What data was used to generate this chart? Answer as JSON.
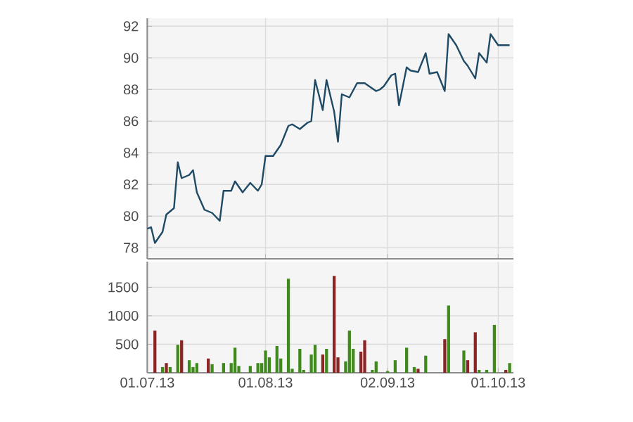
{
  "chart_data": [
    {
      "type": "line",
      "color": "#1f4a66",
      "x": [
        "2013-07-01",
        "2013-07-02",
        "2013-07-03",
        "2013-07-05",
        "2013-07-06",
        "2013-07-08",
        "2013-07-09",
        "2013-07-10",
        "2013-07-12",
        "2013-07-13",
        "2013-07-14",
        "2013-07-16",
        "2013-07-18",
        "2013-07-20",
        "2013-07-21",
        "2013-07-23",
        "2013-07-24",
        "2013-07-26",
        "2013-07-28",
        "2013-07-30",
        "2013-07-31",
        "2013-08-01",
        "2013-08-03",
        "2013-08-05",
        "2013-08-07",
        "2013-08-08",
        "2013-08-10",
        "2013-08-12",
        "2013-08-13",
        "2013-08-14",
        "2013-08-16",
        "2013-08-17",
        "2013-08-19",
        "2013-08-20",
        "2013-08-21",
        "2013-08-23",
        "2013-08-25",
        "2013-08-27",
        "2013-08-30",
        "2013-08-31",
        "2013-09-01",
        "2013-09-03",
        "2013-09-04",
        "2013-09-05",
        "2013-09-07",
        "2013-09-08",
        "2013-09-10",
        "2013-09-12",
        "2013-09-13",
        "2013-09-15",
        "2013-09-17",
        "2013-09-18",
        "2013-09-20",
        "2013-09-22",
        "2013-09-23",
        "2013-09-25",
        "2013-09-26",
        "2013-09-28",
        "2013-09-29",
        "2013-10-01",
        "2013-10-04"
      ],
      "values": [
        79.2,
        79.3,
        78.3,
        79.0,
        80.1,
        80.5,
        83.4,
        82.4,
        82.6,
        82.9,
        81.5,
        80.4,
        80.2,
        79.7,
        81.6,
        81.6,
        82.2,
        81.5,
        82.1,
        81.6,
        82.0,
        83.8,
        83.8,
        84.5,
        85.7,
        85.8,
        85.5,
        85.9,
        86.0,
        88.6,
        86.7,
        88.6,
        86.6,
        84.7,
        87.7,
        87.5,
        88.4,
        88.4,
        87.9,
        88.0,
        88.2,
        88.9,
        89.0,
        87.0,
        89.4,
        89.2,
        89.1,
        90.3,
        89.0,
        89.1,
        87.9,
        91.5,
        90.8,
        89.8,
        89.5,
        88.7,
        90.3,
        89.7,
        91.5,
        90.8,
        90.8
      ],
      "xlim": [
        "2013-07-01",
        "2013-10-05"
      ],
      "ylim": [
        77.3,
        92.5
      ],
      "xticks": [
        {
          "value": "2013-07-01",
          "label": null
        },
        {
          "value": "2013-08-01",
          "label": null
        },
        {
          "value": "2013-09-02",
          "label": null
        },
        {
          "value": "2013-10-01",
          "label": null
        }
      ],
      "yticks": [
        78,
        80,
        82,
        84,
        86,
        88,
        90,
        92
      ],
      "grid": true,
      "tick_labels": "y"
    },
    {
      "type": "bar",
      "x": [
        "2013-07-03",
        "2013-07-05",
        "2013-07-06",
        "2013-07-07",
        "2013-07-09",
        "2013-07-10",
        "2013-07-12",
        "2013-07-13",
        "2013-07-14",
        "2013-07-17",
        "2013-07-18",
        "2013-07-21",
        "2013-07-23",
        "2013-07-24",
        "2013-07-25",
        "2013-07-28",
        "2013-07-30",
        "2013-07-31",
        "2013-08-01",
        "2013-08-02",
        "2013-08-04",
        "2013-08-05",
        "2013-08-07",
        "2013-08-08",
        "2013-08-10",
        "2013-08-11",
        "2013-08-13",
        "2013-08-14",
        "2013-08-16",
        "2013-08-17",
        "2013-08-19",
        "2013-08-20",
        "2013-08-22",
        "2013-08-23",
        "2013-08-24",
        "2013-08-26",
        "2013-08-27",
        "2013-08-29",
        "2013-08-30",
        "2013-09-02",
        "2013-09-04",
        "2013-09-07",
        "2013-09-09",
        "2013-09-10",
        "2013-09-12",
        "2013-09-17",
        "2013-09-18",
        "2013-09-22",
        "2013-09-23",
        "2013-09-25",
        "2013-09-26",
        "2013-09-28",
        "2013-09-30",
        "2013-10-03",
        "2013-10-04"
      ],
      "values": [
        740,
        100,
        170,
        100,
        490,
        570,
        220,
        100,
        170,
        250,
        150,
        170,
        170,
        440,
        120,
        120,
        170,
        170,
        390,
        270,
        470,
        250,
        1650,
        70,
        420,
        50,
        320,
        490,
        320,
        420,
        1700,
        270,
        200,
        740,
        420,
        370,
        570,
        50,
        200,
        30,
        220,
        440,
        100,
        70,
        300,
        590,
        1180,
        390,
        220,
        710,
        50,
        50,
        840,
        50,
        170
      ],
      "colors": [
        "#8b2424",
        "#3f8a1c",
        "#8b2424",
        "#3f8a1c",
        "#3f8a1c",
        "#8b2424",
        "#3f8a1c",
        "#3f8a1c",
        "#3f8a1c",
        "#8b2424",
        "#3f8a1c",
        "#3f8a1c",
        "#3f8a1c",
        "#3f8a1c",
        "#3f8a1c",
        "#3f8a1c",
        "#3f8a1c",
        "#3f8a1c",
        "#3f8a1c",
        "#3f8a1c",
        "#3f8a1c",
        "#3f8a1c",
        "#3f8a1c",
        "#3f8a1c",
        "#3f8a1c",
        "#3f8a1c",
        "#3f8a1c",
        "#3f8a1c",
        "#8b2424",
        "#3f8a1c",
        "#8b2424",
        "#8b2424",
        "#3f8a1c",
        "#3f8a1c",
        "#3f8a1c",
        "#8b2424",
        "#8b2424",
        "#3f8a1c",
        "#3f8a1c",
        "#3f8a1c",
        "#3f8a1c",
        "#3f8a1c",
        "#3f8a1c",
        "#8b2424",
        "#3f8a1c",
        "#8b2424",
        "#3f8a1c",
        "#3f8a1c",
        "#8b2424",
        "#8b2424",
        "#3f8a1c",
        "#3f8a1c",
        "#3f8a1c",
        "#8b2424",
        "#3f8a1c"
      ],
      "xlim": [
        "2013-07-01",
        "2013-10-05"
      ],
      "ylim": [
        0,
        1950
      ],
      "xticks": [
        {
          "value": "2013-07-01",
          "label": "01.07.13"
        },
        {
          "value": "2013-08-01",
          "label": "01.08.13"
        },
        {
          "value": "2013-09-02",
          "label": "02.09.13"
        },
        {
          "value": "2013-10-01",
          "label": "01.10.13"
        }
      ],
      "yticks": [
        500,
        1000,
        1500
      ],
      "grid": true
    }
  ]
}
